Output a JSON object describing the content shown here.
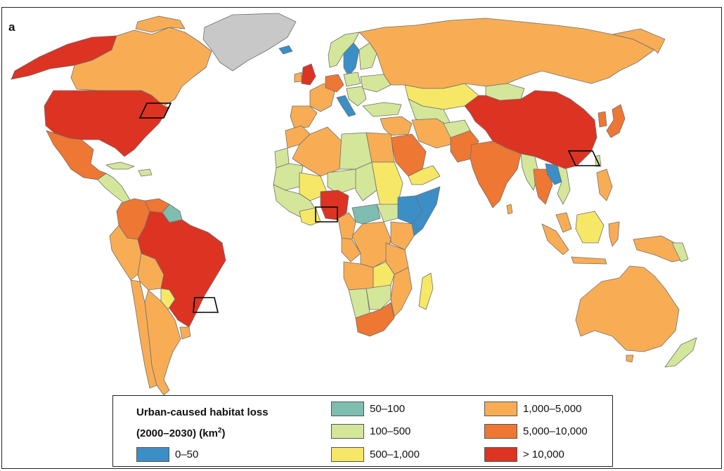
{
  "panel_label": "a",
  "legend": {
    "title_line1": "Urban-caused habitat loss",
    "title_line2_prefix": "(2000–2030) (km",
    "title_line2_sup": "2",
    "title_line2_suffix": ")",
    "classes": [
      {
        "label": "0–50",
        "color": "#3b8fc6"
      },
      {
        "label": "50–100",
        "color": "#7fbdb1"
      },
      {
        "label": "100–500",
        "color": "#d4e69a"
      },
      {
        "label": "500–1,000",
        "color": "#f6e767"
      },
      {
        "label": "1,000–5,000",
        "color": "#f8ad55"
      },
      {
        "label": "5,000–10,000",
        "color": "#ee7733"
      },
      {
        "label": "> 10,000",
        "color": "#dd3322"
      }
    ],
    "no_data_color": "#c8c8c8"
  },
  "highlighted_regions": [
    "eastern-united-states",
    "south-china",
    "nigeria-coast",
    "southeast-brazil"
  ]
}
